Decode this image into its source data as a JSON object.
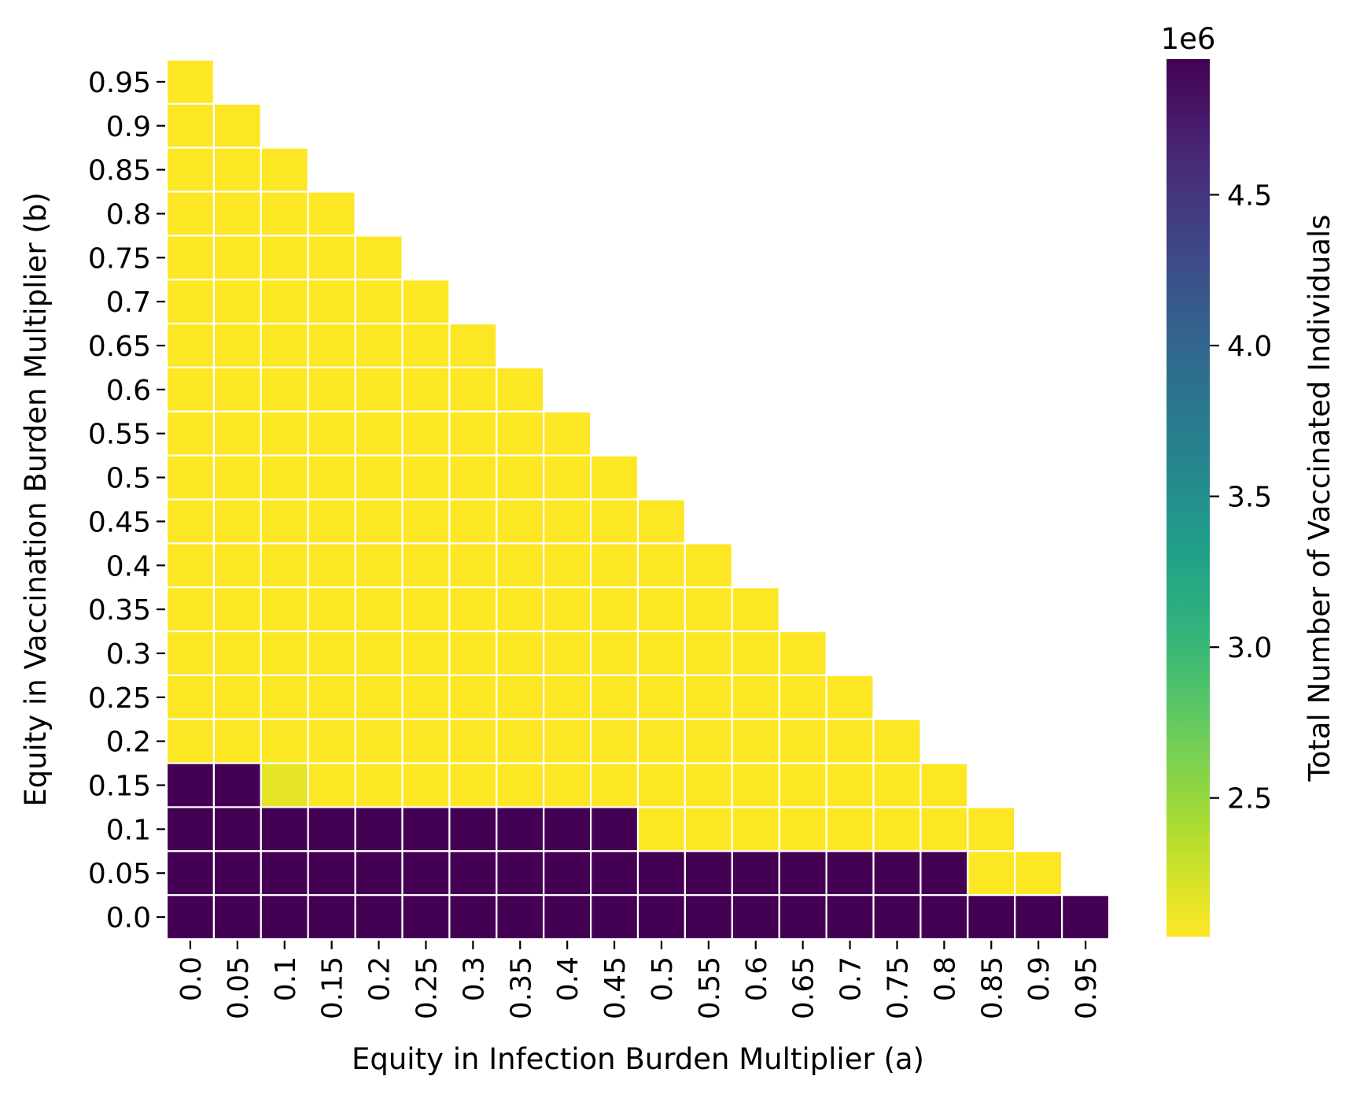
{
  "chart_data": {
    "type": "heatmap",
    "colormap": "viridis",
    "x_categories": [
      "0.0",
      "0.05",
      "0.1",
      "0.15",
      "0.2",
      "0.25",
      "0.3",
      "0.35",
      "0.4",
      "0.45",
      "0.5",
      "0.55",
      "0.6",
      "0.65",
      "0.7",
      "0.75",
      "0.8",
      "0.85",
      "0.9",
      "0.95"
    ],
    "y_categories": [
      "0.95",
      "0.9",
      "0.85",
      "0.8",
      "0.75",
      "0.7",
      "0.65",
      "0.6",
      "0.55",
      "0.5",
      "0.45",
      "0.4",
      "0.35",
      "0.3",
      "0.25",
      "0.2",
      "0.15",
      "0.1",
      "0.05",
      "0.0"
    ],
    "values": [
      [
        2040000,
        null,
        null,
        null,
        null,
        null,
        null,
        null,
        null,
        null,
        null,
        null,
        null,
        null,
        null,
        null,
        null,
        null,
        null,
        null
      ],
      [
        2040000,
        2040000,
        null,
        null,
        null,
        null,
        null,
        null,
        null,
        null,
        null,
        null,
        null,
        null,
        null,
        null,
        null,
        null,
        null,
        null
      ],
      [
        2040000,
        2040000,
        2040000,
        null,
        null,
        null,
        null,
        null,
        null,
        null,
        null,
        null,
        null,
        null,
        null,
        null,
        null,
        null,
        null,
        null
      ],
      [
        2040000,
        2040000,
        2040000,
        2040000,
        null,
        null,
        null,
        null,
        null,
        null,
        null,
        null,
        null,
        null,
        null,
        null,
        null,
        null,
        null,
        null
      ],
      [
        2040000,
        2040000,
        2040000,
        2040000,
        2040000,
        null,
        null,
        null,
        null,
        null,
        null,
        null,
        null,
        null,
        null,
        null,
        null,
        null,
        null,
        null
      ],
      [
        2040000,
        2040000,
        2040000,
        2040000,
        2040000,
        2040000,
        null,
        null,
        null,
        null,
        null,
        null,
        null,
        null,
        null,
        null,
        null,
        null,
        null,
        null
      ],
      [
        2040000,
        2040000,
        2040000,
        2040000,
        2040000,
        2040000,
        2040000,
        null,
        null,
        null,
        null,
        null,
        null,
        null,
        null,
        null,
        null,
        null,
        null,
        null
      ],
      [
        2040000,
        2040000,
        2040000,
        2040000,
        2040000,
        2040000,
        2040000,
        2040000,
        null,
        null,
        null,
        null,
        null,
        null,
        null,
        null,
        null,
        null,
        null,
        null
      ],
      [
        2040000,
        2040000,
        2040000,
        2040000,
        2040000,
        2040000,
        2040000,
        2040000,
        2040000,
        null,
        null,
        null,
        null,
        null,
        null,
        null,
        null,
        null,
        null,
        null
      ],
      [
        2040000,
        2040000,
        2040000,
        2040000,
        2040000,
        2040000,
        2040000,
        2040000,
        2040000,
        2040000,
        null,
        null,
        null,
        null,
        null,
        null,
        null,
        null,
        null,
        null
      ],
      [
        2040000,
        2040000,
        2040000,
        2040000,
        2040000,
        2040000,
        2040000,
        2040000,
        2040000,
        2040000,
        2040000,
        null,
        null,
        null,
        null,
        null,
        null,
        null,
        null,
        null
      ],
      [
        2040000,
        2040000,
        2040000,
        2040000,
        2040000,
        2040000,
        2040000,
        2040000,
        2040000,
        2040000,
        2040000,
        2040000,
        null,
        null,
        null,
        null,
        null,
        null,
        null,
        null
      ],
      [
        2040000,
        2040000,
        2040000,
        2040000,
        2040000,
        2040000,
        2040000,
        2040000,
        2040000,
        2040000,
        2040000,
        2040000,
        2040000,
        null,
        null,
        null,
        null,
        null,
        null,
        null
      ],
      [
        2040000,
        2040000,
        2040000,
        2040000,
        2040000,
        2040000,
        2040000,
        2040000,
        2040000,
        2040000,
        2040000,
        2040000,
        2040000,
        2040000,
        null,
        null,
        null,
        null,
        null,
        null
      ],
      [
        2040000,
        2040000,
        2040000,
        2040000,
        2040000,
        2040000,
        2040000,
        2040000,
        2040000,
        2040000,
        2040000,
        2040000,
        2040000,
        2040000,
        2040000,
        null,
        null,
        null,
        null,
        null
      ],
      [
        2040000,
        2040000,
        2040000,
        2040000,
        2040000,
        2040000,
        2040000,
        2040000,
        2040000,
        2040000,
        2040000,
        2040000,
        2040000,
        2040000,
        2040000,
        2040000,
        null,
        null,
        null,
        null
      ],
      [
        4950000,
        4950000,
        2150000,
        2040000,
        2040000,
        2040000,
        2040000,
        2040000,
        2040000,
        2040000,
        2040000,
        2040000,
        2040000,
        2040000,
        2040000,
        2040000,
        2040000,
        null,
        null,
        null
      ],
      [
        4950000,
        4950000,
        4950000,
        4950000,
        4950000,
        4950000,
        4950000,
        4950000,
        4950000,
        4950000,
        2040000,
        2040000,
        2040000,
        2040000,
        2040000,
        2040000,
        2040000,
        2040000,
        null,
        null
      ],
      [
        4950000,
        4950000,
        4950000,
        4950000,
        4950000,
        4950000,
        4950000,
        4950000,
        4950000,
        4950000,
        4950000,
        4950000,
        4950000,
        4950000,
        4950000,
        4950000,
        4950000,
        2040000,
        2040000,
        null
      ],
      [
        4950000,
        4950000,
        4950000,
        4950000,
        4950000,
        4950000,
        4950000,
        4950000,
        4950000,
        4950000,
        4950000,
        4950000,
        4950000,
        4950000,
        4950000,
        4950000,
        4950000,
        4950000,
        4950000,
        4950000
      ]
    ],
    "xlabel": "Equity in Infection Burden Multiplier (a)",
    "ylabel": "Equity in Vaccination Burden Multiplier (b)",
    "colorbar": {
      "label": "Total Number of Vaccinated Individuals",
      "offset_text": "1e6",
      "ticks": [
        "2.5",
        "3.0",
        "3.5",
        "4.0",
        "4.5"
      ],
      "tick_values": [
        2500000,
        3000000,
        3500000,
        4000000,
        4500000
      ],
      "range": [
        2040000,
        4950000
      ]
    },
    "grid": false
  }
}
